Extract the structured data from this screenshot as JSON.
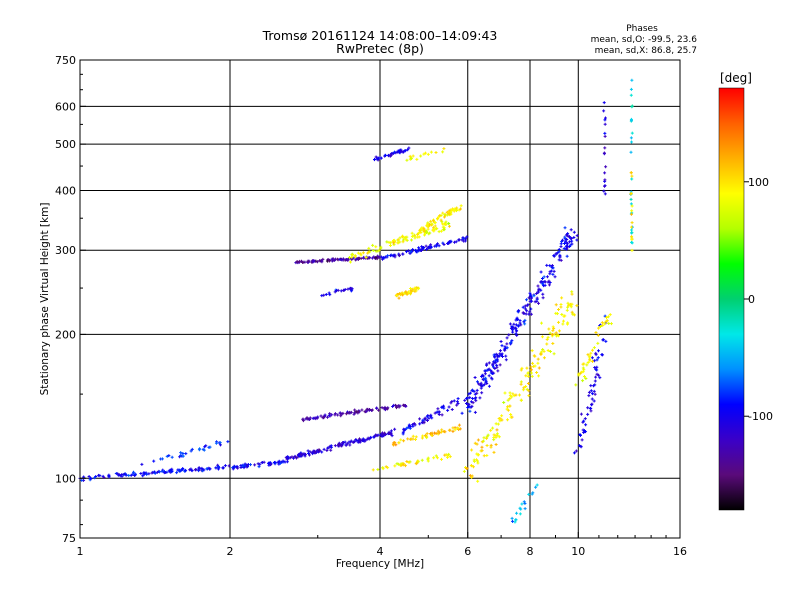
{
  "chart_data": {
    "type": "scatter",
    "title": "Tromsø 20161124 14:08:00–14:09:43",
    "subtitle": "RwPretec (8p)",
    "xlabel": "Frequency [MHz]",
    "ylabel": "Stationary phase Virtual Height [km]",
    "x_scale": "log",
    "y_scale": "log",
    "xlim": [
      1,
      16
    ],
    "ylim": [
      75,
      750
    ],
    "x_ticks": [
      1,
      2,
      4,
      6,
      8,
      10,
      16
    ],
    "x_tick_labels": [
      "1",
      "2",
      "4",
      "6",
      "8",
      "10",
      "16"
    ],
    "y_ticks": [
      75,
      100,
      200,
      300,
      400,
      500,
      600,
      750
    ],
    "y_tick_labels": [
      "75",
      "100",
      "200",
      "300",
      "400",
      "500",
      "600",
      "750"
    ],
    "grid": true,
    "legend": {
      "title": "Phases",
      "lines": [
        "mean, sd,O: -99.5, 23.6",
        "mean, sd,X: 86.8, 25.7"
      ],
      "placement": "top-right"
    },
    "colorbar": {
      "label": "[deg]",
      "range": [
        -180,
        180
      ],
      "ticks": [
        100,
        0,
        -100
      ],
      "tick_labels": [
        "100",
        "0",
        "-100"
      ],
      "colormap": [
        "#000000",
        "#5a0a7a",
        "#3a00c8",
        "#0000ff",
        "#0090ff",
        "#00e8e8",
        "#00d070",
        "#00ff00",
        "#b4ff00",
        "#ffff00",
        "#ffb000",
        "#ff6000",
        "#ff0000"
      ]
    },
    "traces": [
      {
        "x0": 1.0,
        "x1": 2.6,
        "h0": 100,
        "h1": 108,
        "n": 170,
        "phase": -95,
        "spread": 0.015
      },
      {
        "x0": 1.3,
        "x1": 2.0,
        "h0": 106,
        "h1": 120,
        "n": 30,
        "phase": -80,
        "spread": 0.025
      },
      {
        "x0": 2.6,
        "x1": 4.3,
        "h0": 110,
        "h1": 125,
        "n": 140,
        "phase": -110,
        "spread": 0.015
      },
      {
        "x0": 2.8,
        "x1": 4.5,
        "h0": 133,
        "h1": 142,
        "n": 90,
        "phase": -130,
        "spread": 0.012
      },
      {
        "x0": 3.8,
        "x1": 5.6,
        "h0": 104,
        "h1": 112,
        "n": 40,
        "phase": 90,
        "spread": 0.015
      },
      {
        "x0": 4.2,
        "x1": 5.8,
        "h0": 118,
        "h1": 128,
        "n": 50,
        "phase": 110,
        "spread": 0.02
      },
      {
        "x0": 4.4,
        "x1": 6.2,
        "h0": 125,
        "h1": 150,
        "n": 60,
        "phase": -100,
        "spread": 0.03
      },
      {
        "x0": 2.7,
        "x1": 4.0,
        "h0": 283,
        "h1": 290,
        "n": 90,
        "phase": -135,
        "spread": 0.008
      },
      {
        "x0": 4.0,
        "x1": 6.0,
        "h0": 288,
        "h1": 318,
        "n": 80,
        "phase": -100,
        "spread": 0.015
      },
      {
        "x0": 3.5,
        "x1": 5.5,
        "h0": 290,
        "h1": 340,
        "n": 100,
        "phase": 85,
        "spread": 0.03
      },
      {
        "x0": 4.8,
        "x1": 5.8,
        "h0": 330,
        "h1": 370,
        "n": 60,
        "phase": 95,
        "spread": 0.02
      },
      {
        "x0": 4.3,
        "x1": 4.8,
        "h0": 240,
        "h1": 250,
        "n": 40,
        "phase": 100,
        "spread": 0.015
      },
      {
        "x0": 3.0,
        "x1": 3.6,
        "h0": 242,
        "h1": 250,
        "n": 20,
        "phase": -100,
        "spread": 0.015
      },
      {
        "x0": 3.9,
        "x1": 4.6,
        "h0": 465,
        "h1": 490,
        "n": 40,
        "phase": -100,
        "spread": 0.015
      },
      {
        "x0": 4.5,
        "x1": 5.4,
        "h0": 465,
        "h1": 485,
        "n": 15,
        "phase": 90,
        "spread": 0.015
      },
      {
        "x0": 6.0,
        "x1": 9.8,
        "h0": 140,
        "h1": 330,
        "n": 260,
        "phase": -100,
        "spread": 0.07
      },
      {
        "x0": 6.0,
        "x1": 9.8,
        "h0": 100,
        "h1": 240,
        "n": 170,
        "phase": 95,
        "spread": 0.09
      },
      {
        "x0": 10.0,
        "x1": 11.5,
        "h0": 110,
        "h1": 220,
        "n": 60,
        "phase": -100,
        "spread": 0.06
      },
      {
        "x0": 9.8,
        "x1": 11.5,
        "h0": 150,
        "h1": 220,
        "n": 40,
        "phase": 90,
        "spread": 0.05
      },
      {
        "x0": 11.3,
        "x1": 11.3,
        "h0": 380,
        "h1": 620,
        "n": 18,
        "phase": -110,
        "spread": 0.01
      },
      {
        "x0": 12.8,
        "x1": 12.8,
        "h0": 300,
        "h1": 700,
        "n": 25,
        "phase": -30,
        "spread": 0.01
      },
      {
        "x0": 12.8,
        "x1": 12.8,
        "h0": 300,
        "h1": 450,
        "n": 15,
        "phase": 100,
        "spread": 0.01
      },
      {
        "x0": 7.3,
        "x1": 8.3,
        "h0": 80,
        "h1": 98,
        "n": 18,
        "phase": -50,
        "spread": 0.03
      }
    ]
  }
}
